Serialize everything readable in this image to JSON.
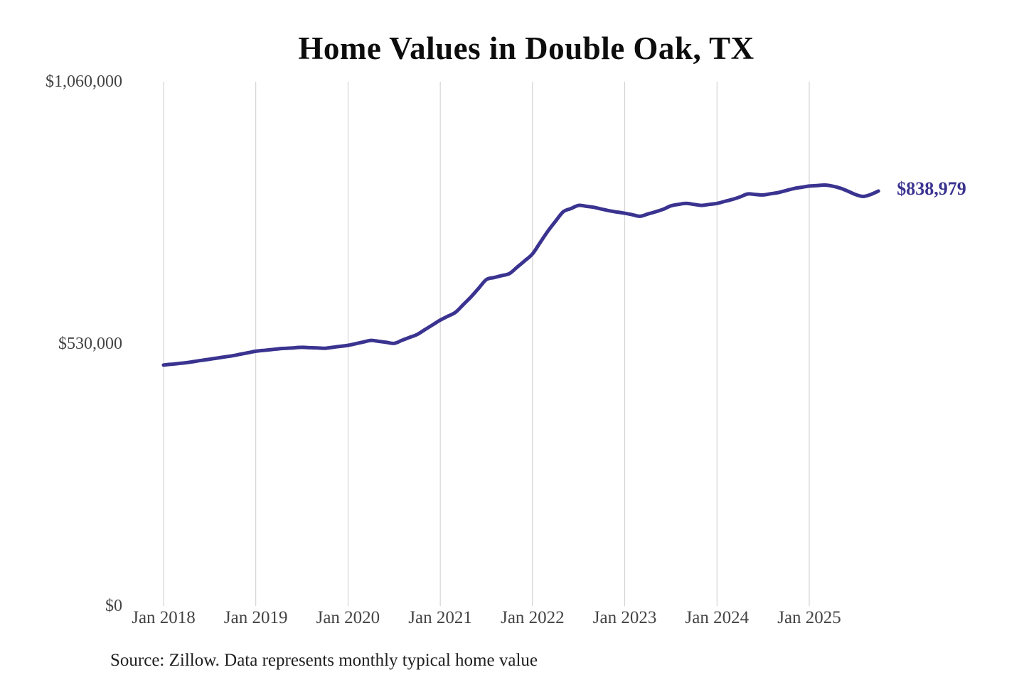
{
  "page": {
    "title": "Home Values in Double Oak, TX",
    "end_label": "$838,979",
    "source_note": "Source: Zillow. Data represents monthly typical home value",
    "colors": {
      "line": "#3a3390",
      "grid": "#cccccc",
      "title": "#0d0d0d",
      "axis": "#444444",
      "source": "#1f1f1f"
    }
  },
  "chart_data": {
    "type": "line",
    "title": "Home Values in Double Oak, TX",
    "xlabel": "",
    "ylabel": "",
    "ylim": [
      0,
      1060000
    ],
    "grid": "vertical-only",
    "legend": "none",
    "y_tick_values": [
      0,
      530000,
      1060000
    ],
    "y_tick_labels": [
      "$0",
      "$530,000",
      "$1,060,000"
    ],
    "x_tick_month_indices": [
      0,
      12,
      24,
      36,
      48,
      60,
      72,
      84
    ],
    "x_tick_labels": [
      "Jan 2018",
      "Jan 2019",
      "Jan 2020",
      "Jan 2021",
      "Jan 2022",
      "Jan 2023",
      "Jan 2024",
      "Jan 2025"
    ],
    "x": [
      "2018-01",
      "2018-02",
      "2018-03",
      "2018-04",
      "2018-05",
      "2018-06",
      "2018-07",
      "2018-08",
      "2018-09",
      "2018-10",
      "2018-11",
      "2018-12",
      "2019-01",
      "2019-02",
      "2019-03",
      "2019-04",
      "2019-05",
      "2019-06",
      "2019-07",
      "2019-08",
      "2019-09",
      "2019-10",
      "2019-11",
      "2019-12",
      "2020-01",
      "2020-02",
      "2020-03",
      "2020-04",
      "2020-05",
      "2020-06",
      "2020-07",
      "2020-08",
      "2020-09",
      "2020-10",
      "2020-11",
      "2020-12",
      "2021-01",
      "2021-02",
      "2021-03",
      "2021-04",
      "2021-05",
      "2021-06",
      "2021-07",
      "2021-08",
      "2021-09",
      "2021-10",
      "2021-11",
      "2021-12",
      "2022-01",
      "2022-02",
      "2022-03",
      "2022-04",
      "2022-05",
      "2022-06",
      "2022-07",
      "2022-08",
      "2022-09",
      "2022-10",
      "2022-11",
      "2022-12",
      "2023-01",
      "2023-02",
      "2023-03",
      "2023-04",
      "2023-05",
      "2023-06",
      "2023-07",
      "2023-08",
      "2023-09",
      "2023-10",
      "2023-11",
      "2023-12",
      "2024-01",
      "2024-02",
      "2024-03",
      "2024-04",
      "2024-05",
      "2024-06",
      "2024-07",
      "2024-08",
      "2024-09",
      "2024-10",
      "2024-11",
      "2024-12",
      "2025-01",
      "2025-02",
      "2025-03",
      "2025-04",
      "2025-05",
      "2025-06",
      "2025-07",
      "2025-08",
      "2025-09",
      "2025-10"
    ],
    "series": [
      {
        "name": "Monthly typical home value",
        "values": [
          487000,
          488700,
          490300,
          492000,
          494300,
          496700,
          499000,
          501300,
          503700,
          506000,
          509000,
          512000,
          515000,
          516700,
          518300,
          520000,
          521000,
          522000,
          523000,
          522300,
          521700,
          521000,
          523000,
          525000,
          527000,
          530300,
          533700,
          537000,
          535000,
          533000,
          531000,
          537000,
          543000,
          549000,
          558700,
          568300,
          578000,
          586000,
          594000,
          609500,
          625000,
          642500,
          660000,
          664000,
          668000,
          672000,
          685000,
          698000,
          712000,
          735000,
          758000,
          778000,
          797000,
          803500,
          810000,
          808000,
          806000,
          802500,
          799000,
          796500,
          794000,
          791000,
          788000,
          792500,
          797000,
          802000,
          809000,
          812000,
          814000,
          812000,
          810000,
          812000,
          814000,
          818000,
          822000,
          827000,
          833000,
          832000,
          831000,
          833500,
          836000,
          840000,
          844000,
          846500,
          849000,
          850000,
          851000,
          849000,
          845000,
          839000,
          832000,
          828000,
          832000,
          838979
        ]
      }
    ],
    "end_value_label": "$838,979"
  }
}
